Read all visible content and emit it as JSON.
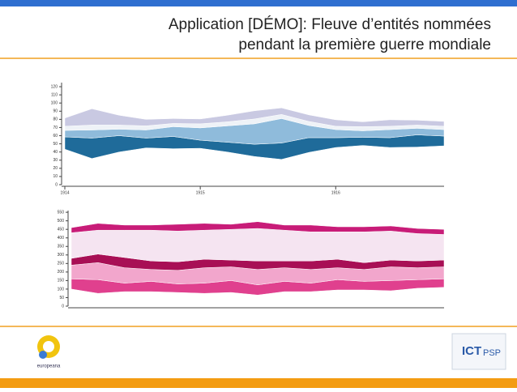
{
  "header": {
    "title_lines": [
      "Application [DÉMO]: Fleuve d’entités nommées",
      "pendant la première guerre mondiale"
    ]
  },
  "chart_data": [
    {
      "type": "streamgraph",
      "x": [
        1914,
        1914.2,
        1914.4,
        1914.6,
        1914.8,
        1915,
        1915.2,
        1915.4,
        1915.6,
        1915.8,
        1916,
        1916.2,
        1916.4,
        1916.6,
        1916.8
      ],
      "xlim": [
        1914,
        1916.8
      ],
      "xticks": [
        1914,
        1915,
        1916
      ],
      "ylim": [
        0,
        125
      ],
      "yticks": [
        0,
        10,
        20,
        30,
        40,
        50,
        60,
        70,
        80,
        90,
        100,
        110,
        120
      ],
      "series": [
        {
          "color": "#1f6b9a",
          "values": [
            15,
            25,
            20,
            12,
            15,
            10,
            12,
            15,
            20,
            18,
            12,
            10,
            12,
            15,
            12
          ]
        },
        {
          "color": "#8fbbdb",
          "values": [
            8,
            10,
            8,
            10,
            12,
            15,
            20,
            25,
            30,
            15,
            10,
            8,
            10,
            8,
            8
          ]
        },
        {
          "color": "#eef2f7",
          "values": [
            5,
            6,
            5,
            5,
            4,
            5,
            5,
            6,
            5,
            5,
            4,
            5,
            4,
            4,
            4
          ]
        },
        {
          "color": "#c9c9e2",
          "values": [
            10,
            20,
            12,
            8,
            6,
            6,
            8,
            10,
            8,
            8,
            8,
            6,
            8,
            6,
            6
          ]
        }
      ]
    },
    {
      "type": "streamgraph",
      "x": [
        1914,
        1914.2,
        1914.4,
        1914.6,
        1914.8,
        1915,
        1915.2,
        1915.4,
        1915.6,
        1915.8,
        1916,
        1916.2,
        1916.4,
        1916.6,
        1916.8
      ],
      "xlim": [
        1914,
        1916.8
      ],
      "ylim": [
        0,
        560
      ],
      "yticks": [
        0,
        50,
        100,
        150,
        200,
        250,
        300,
        350,
        400,
        450,
        500,
        550
      ],
      "series": [
        {
          "color": "#e0408e",
          "values": [
            60,
            80,
            50,
            60,
            50,
            60,
            70,
            60,
            60,
            50,
            60,
            50,
            60,
            50,
            50
          ]
        },
        {
          "color": "#f2a6cc",
          "values": [
            80,
            100,
            90,
            70,
            80,
            90,
            80,
            90,
            80,
            80,
            70,
            70,
            80,
            70,
            70
          ]
        },
        {
          "color": "#a80f55",
          "values": [
            40,
            50,
            60,
            50,
            50,
            50,
            40,
            50,
            40,
            50,
            50,
            40,
            40,
            40,
            40
          ]
        },
        {
          "color": "#f5e4f1",
          "values": [
            150,
            140,
            160,
            180,
            180,
            170,
            180,
            190,
            180,
            170,
            160,
            180,
            170,
            160,
            150
          ]
        },
        {
          "color": "#c81c78",
          "values": [
            30,
            40,
            30,
            30,
            40,
            40,
            30,
            40,
            30,
            40,
            30,
            30,
            30,
            30,
            30
          ]
        }
      ]
    }
  ],
  "footer": {
    "left_logo": "europeana",
    "right_logo_a": "ICT",
    "right_logo_b": "PSP"
  }
}
